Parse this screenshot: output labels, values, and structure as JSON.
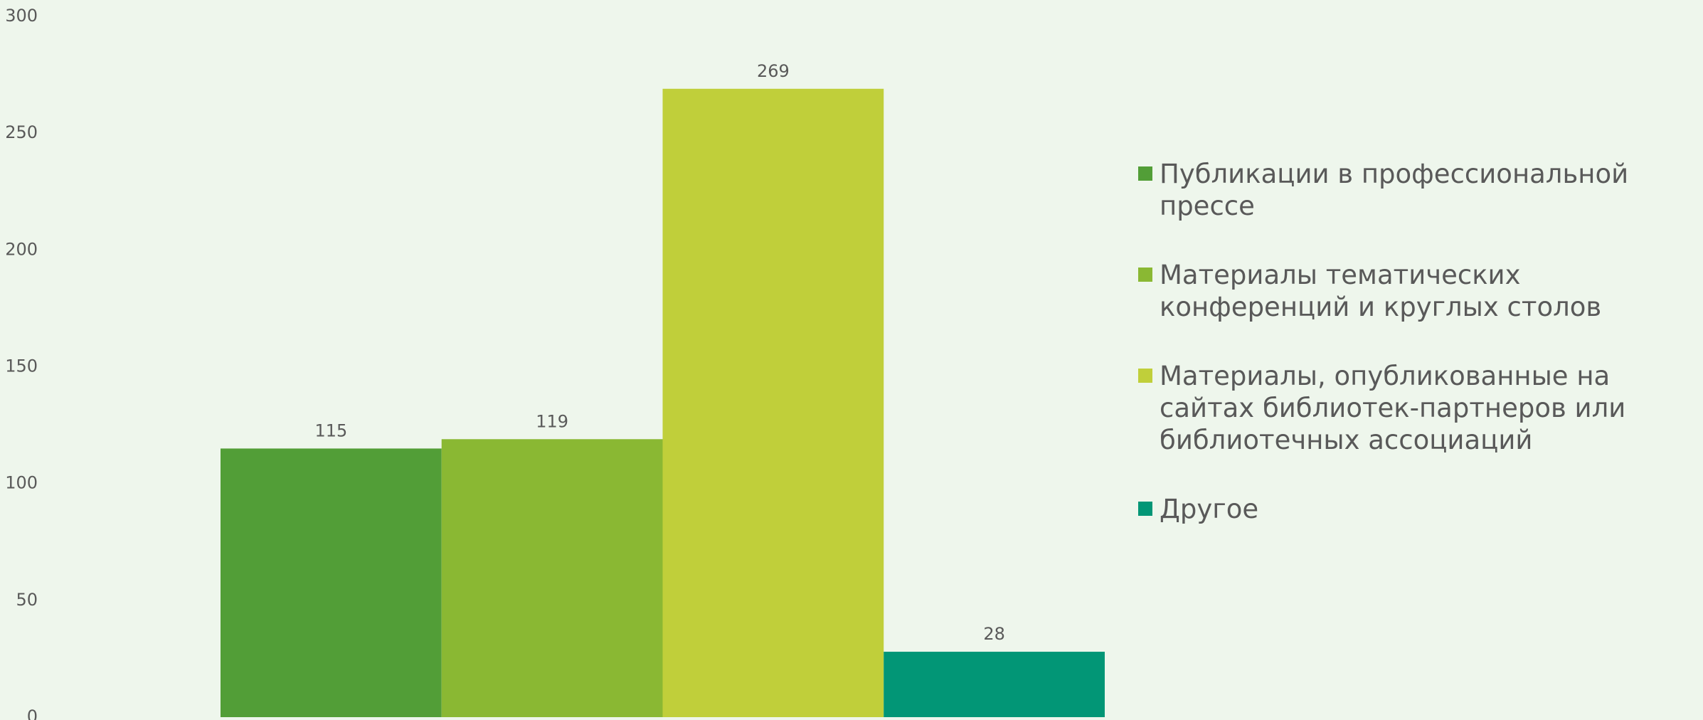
{
  "chart_data": {
    "type": "bar",
    "categories": [
      null
    ],
    "series": [
      {
        "name": "Публикации в профессиональной прессе",
        "color": "#529e37",
        "values": [
          115
        ]
      },
      {
        "name": "Материалы тематических конференций и круглых столов",
        "color": "#8ab833",
        "values": [
          119
        ]
      },
      {
        "name": "Материалы, опубликованные на сайтах библиотек-партнеров или библиотечных ассоциаций",
        "color": "#c0cf3a",
        "values": [
          269
        ]
      },
      {
        "name": "Другое",
        "color": "#029676",
        "values": [
          28
        ]
      }
    ],
    "ylim": [
      0,
      300
    ],
    "yticks": [
      0,
      50,
      100,
      150,
      200,
      250,
      300
    ],
    "grid": false,
    "legend": "right"
  }
}
